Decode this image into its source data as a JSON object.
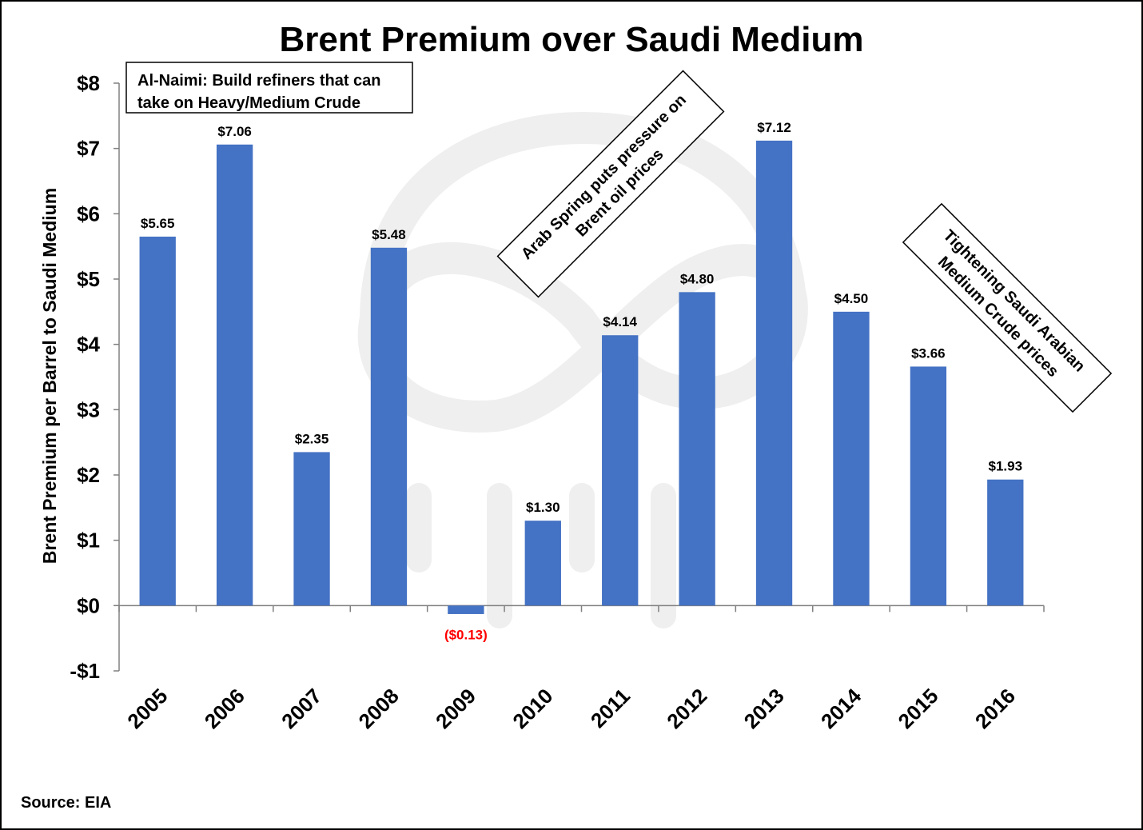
{
  "chart_data": {
    "type": "bar",
    "title": "Brent Premium over Saudi Medium",
    "ylabel": "Brent Premium per Barrel to Saudi Medium",
    "xlabel": "",
    "categories": [
      "2005",
      "2006",
      "2007",
      "2008",
      "2009",
      "2010",
      "2011",
      "2012",
      "2013",
      "2014",
      "2015",
      "2016"
    ],
    "values": [
      5.65,
      7.06,
      2.35,
      5.48,
      -0.13,
      1.3,
      4.14,
      4.8,
      7.12,
      4.5,
      3.66,
      1.93
    ],
    "data_labels": [
      "$5.65",
      "$7.06",
      "$2.35",
      "$5.48",
      "($0.13)",
      "$1.30",
      "$4.14",
      "$4.80",
      "$7.12",
      "$4.50",
      "$3.66",
      "$1.93"
    ],
    "ylim": [
      -1,
      8
    ],
    "yticks": [
      {
        "value": 8,
        "label": "$8"
      },
      {
        "value": 7,
        "label": "$7"
      },
      {
        "value": 6,
        "label": "$6"
      },
      {
        "value": 5,
        "label": "$5"
      },
      {
        "value": 4,
        "label": "$4"
      },
      {
        "value": 3,
        "label": "$3"
      },
      {
        "value": 2,
        "label": "$2"
      },
      {
        "value": 1,
        "label": "$1"
      },
      {
        "value": 0,
        "label": "$0"
      },
      {
        "value": -1,
        "label": "-$1"
      }
    ],
    "grid": false,
    "legend": "none",
    "annotations": [
      {
        "lines": [
          "Al-Naimi: Build refiners that can",
          "take on Heavy/Medium Crude"
        ]
      },
      {
        "lines": [
          "Arab Spring puts pressure on",
          "Brent oil prices"
        ]
      },
      {
        "lines": [
          "Tightening Saudi Arabian",
          "Medium Crude prices"
        ]
      }
    ],
    "source": "Source: EIA"
  },
  "colors": {
    "bar": "#4472C4",
    "negative_label": "#FF0000",
    "axis": "#808080",
    "text": "#000000",
    "watermark": "#EFEFEF"
  },
  "watermark": {
    "icon": "infinity-chart-logo-watermark"
  }
}
